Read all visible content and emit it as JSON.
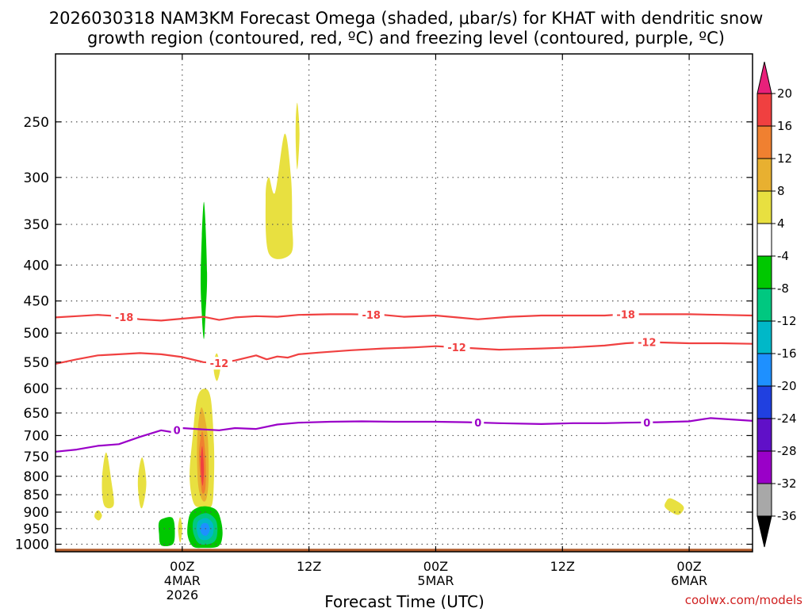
{
  "title_line1": "2026030318 NAM3KM Forecast Omega (shaded, μbar/s) for KHAT with dendritic snow",
  "title_line2": "growth region (contoured, red, ºC) and freezing level (contoured, purple, ºC)",
  "xlabel": "Forecast Time (UTC)",
  "credit": "coolwx.com/models",
  "chart_data": {
    "type": "contour",
    "x_axis": {
      "unit": "hours since 2026030318",
      "range": [
        -6,
        60
      ],
      "ticks": [
        {
          "hour": 6,
          "lines": [
            "00Z",
            "4MAR",
            "2026"
          ]
        },
        {
          "hour": 18,
          "lines": [
            "12Z"
          ]
        },
        {
          "hour": 30,
          "lines": [
            "00Z",
            "5MAR"
          ]
        },
        {
          "hour": 42,
          "lines": [
            "12Z"
          ]
        },
        {
          "hour": 54,
          "lines": [
            "00Z",
            "6MAR"
          ]
        }
      ]
    },
    "y_axis": {
      "unit": "hPa",
      "scale": "log",
      "range": [
        1025,
        200
      ],
      "ticks": [
        250,
        300,
        350,
        400,
        450,
        500,
        550,
        600,
        650,
        700,
        750,
        800,
        850,
        900,
        950,
        1000
      ]
    },
    "colorbar": {
      "labels": [
        "20",
        "16",
        "12",
        "8",
        "4",
        "-4",
        "-8",
        "-12",
        "-16",
        "-20",
        "-24",
        "-28",
        "-32",
        "-36"
      ],
      "colors": [
        "#e8207a",
        "#f04040",
        "#f08030",
        "#e8b030",
        "#e8e040",
        "#ffffff",
        "#00c800",
        "#00c880",
        "#00b8c8",
        "#1e90ff",
        "#2040e0",
        "#6010c8",
        "#9a00c8",
        "#a8a8a8",
        "#000000"
      ]
    },
    "contours": [
      {
        "name": "-18 isotherm",
        "color": "#f04040",
        "label": "-18",
        "label_at": [
          0.5,
          23.9,
          48
        ],
        "points": [
          [
            -6,
            475
          ],
          [
            -4,
            473
          ],
          [
            -2,
            471
          ],
          [
            0,
            473
          ],
          [
            2,
            478
          ],
          [
            4,
            480
          ],
          [
            6,
            477
          ],
          [
            8,
            474
          ],
          [
            9.5,
            479
          ],
          [
            11,
            475
          ],
          [
            13,
            473
          ],
          [
            15,
            474
          ],
          [
            17,
            471
          ],
          [
            20,
            470
          ],
          [
            22,
            470
          ],
          [
            25,
            471
          ],
          [
            27,
            474
          ],
          [
            30,
            472
          ],
          [
            32,
            475
          ],
          [
            34,
            478
          ],
          [
            37,
            474
          ],
          [
            40,
            472
          ],
          [
            43,
            472
          ],
          [
            46,
            472
          ],
          [
            48,
            470
          ],
          [
            51,
            470
          ],
          [
            54,
            470
          ],
          [
            57,
            471
          ],
          [
            60,
            472
          ]
        ]
      },
      {
        "name": "-12 isotherm",
        "color": "#f04040",
        "label": "-12",
        "label_at": [
          9.5,
          32,
          50
        ],
        "points": [
          [
            -6,
            553
          ],
          [
            -4,
            545
          ],
          [
            -2,
            538
          ],
          [
            0,
            536
          ],
          [
            2,
            534
          ],
          [
            4,
            536
          ],
          [
            6,
            541
          ],
          [
            8,
            550
          ],
          [
            9.5,
            552
          ],
          [
            11,
            547
          ],
          [
            13,
            538
          ],
          [
            14,
            545
          ],
          [
            15,
            540
          ],
          [
            16,
            542
          ],
          [
            17,
            536
          ],
          [
            19,
            533
          ],
          [
            22,
            529
          ],
          [
            25,
            526
          ],
          [
            28,
            524
          ],
          [
            30,
            522
          ],
          [
            33,
            525
          ],
          [
            36,
            528
          ],
          [
            40,
            526
          ],
          [
            43,
            524
          ],
          [
            46,
            521
          ],
          [
            48,
            517
          ],
          [
            50,
            515
          ],
          [
            54,
            517
          ],
          [
            57,
            517
          ],
          [
            60,
            518
          ]
        ]
      },
      {
        "name": "0 isotherm",
        "color": "#9a00c8",
        "label": "0",
        "label_at": [
          5.5,
          34,
          50
        ],
        "points": [
          [
            -6,
            738
          ],
          [
            -4,
            733
          ],
          [
            -2,
            724
          ],
          [
            0,
            720
          ],
          [
            2,
            703
          ],
          [
            4,
            688
          ],
          [
            5,
            692
          ],
          [
            6,
            683
          ],
          [
            8,
            686
          ],
          [
            9.5,
            688
          ],
          [
            11,
            683
          ],
          [
            13,
            685
          ],
          [
            15,
            675
          ],
          [
            17,
            671
          ],
          [
            20,
            669
          ],
          [
            23,
            668
          ],
          [
            26,
            669
          ],
          [
            30,
            669
          ],
          [
            33,
            670
          ],
          [
            36,
            672
          ],
          [
            40,
            674
          ],
          [
            43,
            672
          ],
          [
            46,
            672
          ],
          [
            48,
            671
          ],
          [
            51,
            670
          ],
          [
            54,
            668
          ],
          [
            56,
            661
          ],
          [
            58,
            664
          ],
          [
            60,
            667
          ]
        ]
      }
    ],
    "omega_cells": [
      {
        "level": "4",
        "color": "#e8e040",
        "points": [
          [
            -1.2,
            740
          ],
          [
            -0.7,
            815
          ],
          [
            -0.5,
            880
          ],
          [
            -1.4,
            880
          ],
          [
            -1.6,
            810
          ]
        ]
      },
      {
        "level": "4",
        "color": "#e8e040",
        "points": [
          [
            2.2,
            752
          ],
          [
            2.6,
            815
          ],
          [
            2.3,
            880
          ],
          [
            2.0,
            880
          ],
          [
            1.8,
            810
          ]
        ]
      },
      {
        "level": "4",
        "color": "#e8e040",
        "points": [
          [
            -1.9,
            895
          ],
          [
            -1.6,
            910
          ],
          [
            -1.9,
            925
          ],
          [
            -2.3,
            915
          ],
          [
            -2.2,
            900
          ]
        ]
      },
      {
        "level": "4",
        "color": "#e8e040",
        "points": [
          [
            5.8,
            915
          ],
          [
            6.0,
            950
          ],
          [
            5.8,
            995
          ],
          [
            5.6,
            950
          ]
        ]
      },
      {
        "level": "4",
        "color": "#e8e040",
        "points": [
          [
            8.1,
            600
          ],
          [
            8.7,
            620
          ],
          [
            9.0,
            720
          ],
          [
            9.0,
            810
          ],
          [
            8.8,
            880
          ],
          [
            8.0,
            885
          ],
          [
            7.1,
            875
          ],
          [
            6.7,
            800
          ],
          [
            7.0,
            700
          ],
          [
            7.4,
            620
          ]
        ]
      },
      {
        "level": "8",
        "color": "#e8b030",
        "points": [
          [
            7.9,
            640
          ],
          [
            8.4,
            700
          ],
          [
            8.5,
            800
          ],
          [
            8.3,
            860
          ],
          [
            7.9,
            865
          ],
          [
            7.5,
            820
          ],
          [
            7.4,
            720
          ],
          [
            7.6,
            660
          ]
        ]
      },
      {
        "level": "12",
        "color": "#f08030",
        "points": [
          [
            7.9,
            690
          ],
          [
            8.2,
            750
          ],
          [
            8.2,
            830
          ],
          [
            7.9,
            845
          ],
          [
            7.7,
            800
          ],
          [
            7.6,
            740
          ]
        ]
      },
      {
        "level": "16",
        "color": "#f04040",
        "points": [
          [
            7.9,
            725
          ],
          [
            8.05,
            780
          ],
          [
            7.95,
            825
          ],
          [
            7.8,
            800
          ],
          [
            7.75,
            760
          ]
        ]
      },
      {
        "level": "4",
        "color": "#e8e040",
        "points": [
          [
            9.3,
            535
          ],
          [
            9.6,
            560
          ],
          [
            9.3,
            585
          ],
          [
            9.0,
            568
          ],
          [
            9.05,
            545
          ]
        ]
      },
      {
        "level": "4",
        "color": "#e8e040",
        "points": [
          [
            15.7,
            260
          ],
          [
            16.3,
            300
          ],
          [
            16.4,
            345
          ],
          [
            16.3,
            385
          ],
          [
            14.2,
            385
          ],
          [
            13.9,
            320
          ],
          [
            14.2,
            300
          ],
          [
            14.8,
            315
          ]
        ]
      },
      {
        "level": "4",
        "color": "#e8e040",
        "points": [
          [
            16.9,
            235
          ],
          [
            17.1,
            260
          ],
          [
            16.9,
            292
          ],
          [
            16.75,
            270
          ],
          [
            16.75,
            248
          ]
        ]
      },
      {
        "level": "4",
        "color": "#e8e040",
        "points": [
          [
            52.2,
            860
          ],
          [
            53.2,
            875
          ],
          [
            53.5,
            890
          ],
          [
            53.0,
            908
          ],
          [
            52.3,
            900
          ],
          [
            51.7,
            885
          ],
          [
            51.8,
            870
          ]
        ]
      },
      {
        "level": "-4",
        "color": "#00c800",
        "points": [
          [
            8.05,
            325
          ],
          [
            8.35,
            410
          ],
          [
            8.2,
            470
          ],
          [
            8.05,
            510
          ],
          [
            7.85,
            470
          ],
          [
            7.75,
            410
          ]
        ]
      },
      {
        "level": "-4",
        "color": "#00c800",
        "points": [
          [
            3.8,
            930
          ],
          [
            4.3,
            918
          ],
          [
            5.1,
            918
          ],
          [
            5.3,
            960
          ],
          [
            5.1,
            1000
          ],
          [
            4.0,
            1003
          ],
          [
            3.8,
            965
          ]
        ]
      },
      {
        "level": "-4",
        "color": "#00c800",
        "points": [
          [
            7.0,
            895
          ],
          [
            8.0,
            883
          ],
          [
            9.2,
            893
          ],
          [
            9.7,
            930
          ],
          [
            9.8,
            975
          ],
          [
            9.4,
            1007
          ],
          [
            8.0,
            1012
          ],
          [
            7.0,
            1007
          ],
          [
            6.5,
            970
          ],
          [
            6.6,
            920
          ]
        ]
      },
      {
        "level": "-8",
        "color": "#00c880",
        "points": [
          [
            7.3,
            915
          ],
          [
            8.3,
            903
          ],
          [
            9.2,
            925
          ],
          [
            9.3,
            970
          ],
          [
            8.9,
            995
          ],
          [
            7.7,
            1000
          ],
          [
            7.1,
            970
          ],
          [
            7.0,
            935
          ]
        ]
      },
      {
        "level": "-12",
        "color": "#00b8c8",
        "points": [
          [
            7.6,
            925
          ],
          [
            8.3,
            918
          ],
          [
            8.9,
            935
          ],
          [
            8.9,
            968
          ],
          [
            8.4,
            985
          ],
          [
            7.7,
            983
          ],
          [
            7.4,
            960
          ],
          [
            7.4,
            938
          ]
        ]
      },
      {
        "level": "-16",
        "color": "#1e90ff",
        "points": [
          [
            7.9,
            935
          ],
          [
            8.4,
            935
          ],
          [
            8.6,
            955
          ],
          [
            8.3,
            972
          ],
          [
            7.9,
            968
          ],
          [
            7.7,
            952
          ]
        ]
      }
    ],
    "ground": {
      "color": "#b05a2a",
      "pressure_top": 1015
    },
    "grid": true
  }
}
